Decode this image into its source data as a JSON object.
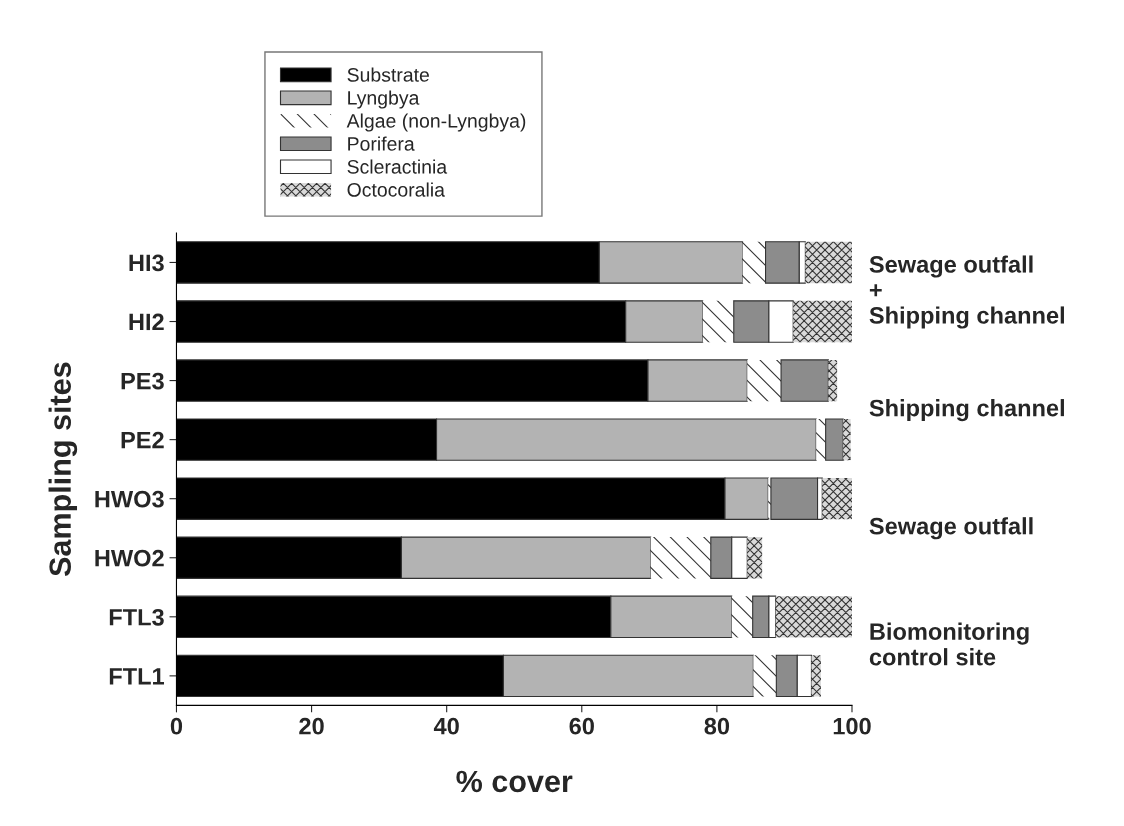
{
  "chart_data": {
    "type": "bar",
    "orientation": "horizontal",
    "stacked": true,
    "xlabel": "% cover",
    "ylabel": "Sampling sites",
    "categories": [
      "HI3",
      "HI2",
      "PE3",
      "PE2",
      "HWO3",
      "HWO2",
      "FTL3",
      "FTL1"
    ],
    "series": [
      {
        "name": "Substrate",
        "color": "#000000",
        "values": [
          62.6,
          66.5,
          69.8,
          38.5,
          81.2,
          33.3,
          64.3,
          48.4
        ]
      },
      {
        "name": "Lyngbya",
        "color": "#b3b3b3",
        "values": [
          21.2,
          11.4,
          14.7,
          56.2,
          6.4,
          36.9,
          17.9,
          37.0
        ]
      },
      {
        "name": "Algae (non-Lyngbya)",
        "color": "#ffffff",
        "values": [
          3.4,
          4.6,
          5.0,
          1.4,
          0.4,
          8.9,
          3.1,
          3.4
        ]
      },
      {
        "name": "Porifera",
        "color": "#8c8c8c",
        "values": [
          5.0,
          5.2,
          7.0,
          2.6,
          6.9,
          3.1,
          2.4,
          3.1
        ]
      },
      {
        "name": "Scleractinia",
        "color": "#ffffff",
        "values": [
          0.9,
          3.6,
          null,
          null,
          0.7,
          2.3,
          1.0,
          2.1
        ]
      },
      {
        "name": "Octocoralia",
        "color": "#d9d9d9",
        "values": [
          6.9,
          8.7,
          1.3,
          1.1,
          4.4,
          2.2,
          11.3,
          1.4
        ]
      }
    ],
    "xlim": [
      0,
      100
    ],
    "xticks": [
      0,
      20,
      40,
      60,
      80,
      100
    ],
    "grid": false,
    "legend": "top",
    "annotations": [
      "Sewage outfall\n+\nShipping channel",
      "Shipping channel",
      "Sewage outfall",
      "Biomonitoring\ncontrol site"
    ]
  }
}
